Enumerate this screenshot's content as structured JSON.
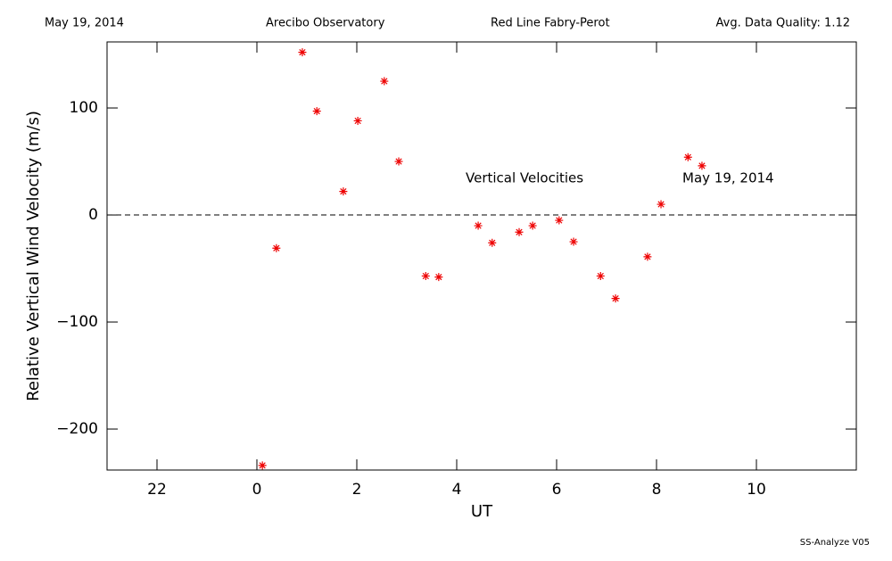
{
  "header": [
    "May 19, 2014",
    "Arecibo Observatory",
    "Red Line Fabry-Perot",
    "Avg. Data Quality: 1.12"
  ],
  "footer": "SS-Analyze V05",
  "chart_data": {
    "type": "scatter",
    "x_label": "UT",
    "y_label": "Relative Vertical Wind Velocity (m/s)",
    "annotations": [
      "Vertical Velocities",
      "May 19, 2014"
    ],
    "series": [
      {
        "name": "Vertical Velocities",
        "color": "#ee0000",
        "x": [
          0.11,
          0.39,
          0.91,
          1.2,
          1.73,
          2.02,
          2.55,
          2.84,
          3.38,
          3.64,
          4.43,
          4.71,
          5.25,
          5.52,
          6.05,
          6.34,
          6.88,
          7.18,
          7.82,
          8.09,
          8.63,
          8.91
        ],
        "values": [
          -234,
          -31,
          152,
          97,
          22,
          88,
          125,
          50,
          -57,
          -58,
          -10,
          -26,
          -16,
          -10,
          -5,
          -25,
          -57,
          -78,
          -39,
          10,
          54,
          46
        ]
      }
    ],
    "xlim": [
      -3,
      12
    ],
    "xticks": [
      {
        "value": -2,
        "label": "22"
      },
      0,
      2,
      4,
      6,
      8,
      10
    ],
    "ylim": [
      -238.3,
      161.7
    ],
    "yticks": [
      {
        "value": -200,
        "label": "−200"
      },
      {
        "value": -100,
        "label": "−100"
      },
      0,
      100
    ],
    "reference_line": 0
  }
}
